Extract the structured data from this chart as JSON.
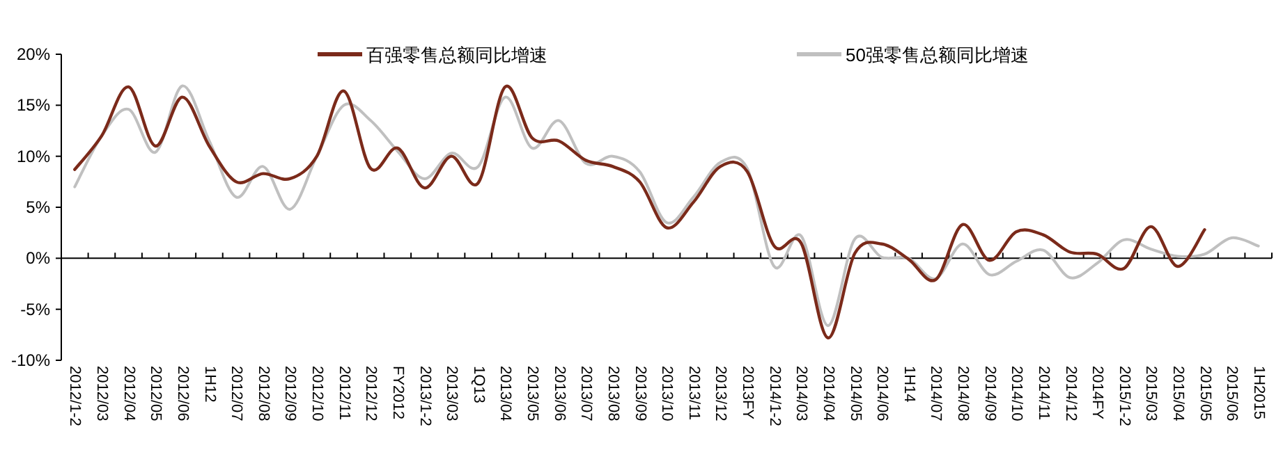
{
  "chart_data": {
    "type": "line",
    "categories": [
      "2012/1-2",
      "2012/03",
      "2012/04",
      "2012/05",
      "2012/06",
      "1H12",
      "2012/07",
      "2012/08",
      "2012/09",
      "2012/10",
      "2012/11",
      "2012/12",
      "FY2012",
      "2013/1-2",
      "2013/03",
      "1Q13",
      "2013/04",
      "2013/05",
      "2013/06",
      "2013/07",
      "2013/08",
      "2013/09",
      "2013/10",
      "2013/11",
      "2013/12",
      "2013FY",
      "2014/1-2",
      "2014/03",
      "2014/04",
      "2014/05",
      "2014/06",
      "1H14",
      "2014/07",
      "2014/08",
      "2014/09",
      "2014/10",
      "2014/11",
      "2014/12",
      "2014FY",
      "2015/1-2",
      "2015/03",
      "2015/04",
      "2015/05",
      "2015/06",
      "1H2015"
    ],
    "series": [
      {
        "name": "百强零售总额同比增速",
        "color": "#7b2a1a",
        "values": [
          8.7,
          12,
          16.8,
          11,
          15.8,
          11,
          7.5,
          8.3,
          7.8,
          10,
          16.4,
          8.8,
          10.8,
          6.9,
          10,
          7.4,
          16.8,
          11.8,
          11.5,
          9.6,
          9,
          7.5,
          3,
          5.5,
          9,
          8.5,
          1.2,
          1.5,
          -7.8,
          0.5,
          1.4,
          -0.1,
          -2.1,
          3.3,
          -0.2,
          2.6,
          2.3,
          0.6,
          0.4,
          -1,
          3.1,
          -0.8,
          2.8,
          null,
          null
        ]
      },
      {
        "name": "50强零售总额同比增速",
        "color": "#c0c0c0",
        "values": [
          7,
          12,
          14.6,
          10.4,
          16.9,
          11.5,
          6,
          9,
          4.8,
          10,
          15,
          13.5,
          10.5,
          7.8,
          10.3,
          9,
          15.8,
          10.8,
          13.5,
          9.3,
          10,
          8.5,
          3.5,
          6,
          9.4,
          8.8,
          -0.8,
          2.2,
          -6.6,
          1.9,
          0.1,
          0,
          -2,
          1.4,
          -1.6,
          -0.3,
          0.8,
          -1.9,
          -0.5,
          1.8,
          0.9,
          0.2,
          0.4,
          2,
          1.2
        ]
      }
    ],
    "ylim": [
      -10,
      20
    ],
    "yticks": [
      {
        "value": -10,
        "label": "-10%"
      },
      {
        "value": -5,
        "label": "-5%"
      },
      {
        "value": 0,
        "label": "0%"
      },
      {
        "value": 5,
        "label": "5%"
      },
      {
        "value": 10,
        "label": "10%"
      },
      {
        "value": 15,
        "label": "15%"
      },
      {
        "value": 20,
        "label": "20%"
      }
    ],
    "legend": "top",
    "marker": "none",
    "line_style": "solid"
  }
}
